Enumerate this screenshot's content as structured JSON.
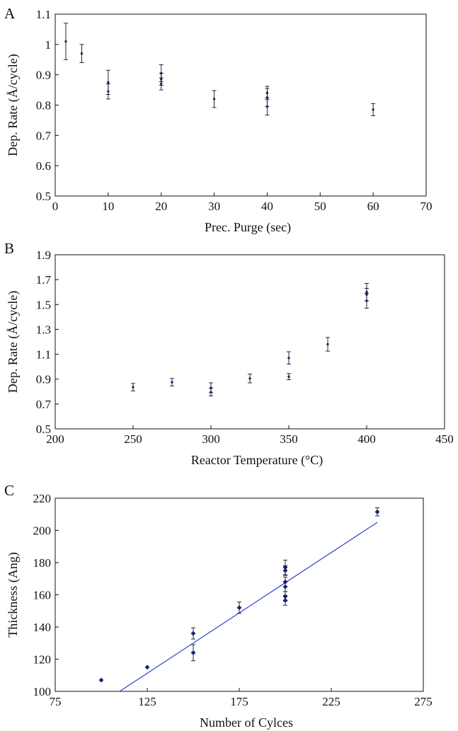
{
  "chart_data": [
    {
      "panel": "A",
      "type": "scatter",
      "xlabel": "Prec. Purge (sec)",
      "ylabel": "Dep. Rate (Å/cycle)",
      "xlim": [
        0,
        70
      ],
      "ylim": [
        0.5,
        1.1
      ],
      "xticks": [
        0,
        10,
        20,
        30,
        40,
        50,
        60,
        70
      ],
      "yticks": [
        0.5,
        0.6,
        0.7,
        0.8,
        0.9,
        1.0,
        1.1
      ],
      "xtick_labels": [
        "0",
        "10",
        "20",
        "30",
        "40",
        "50",
        "60",
        "70"
      ],
      "ytick_labels": [
        "0.5",
        "0.6",
        "0.7",
        "0.8",
        "0.9",
        "1",
        "1.1"
      ],
      "grid": false,
      "points": [
        {
          "x": 2,
          "y": 1.01,
          "err": 0.06
        },
        {
          "x": 5,
          "y": 0.97,
          "err": 0.03
        },
        {
          "x": 10,
          "y": 0.875,
          "err": 0.04
        },
        {
          "x": 10,
          "y": 0.845,
          "err": 0.025
        },
        {
          "x": 20,
          "y": 0.905,
          "err": 0.028
        },
        {
          "x": 20,
          "y": 0.885,
          "err": 0.02
        },
        {
          "x": 20,
          "y": 0.87,
          "err": 0.02
        },
        {
          "x": 30,
          "y": 0.82,
          "err": 0.028
        },
        {
          "x": 40,
          "y": 0.84,
          "err": 0.022
        },
        {
          "x": 40,
          "y": 0.825,
          "err": 0.03
        },
        {
          "x": 40,
          "y": 0.795,
          "err": 0.028
        },
        {
          "x": 60,
          "y": 0.785,
          "err": 0.02
        }
      ]
    },
    {
      "panel": "B",
      "type": "scatter",
      "xlabel": "Reactor  Temperature (°C)",
      "ylabel": "Dep. Rate (Å/cycle)",
      "xlim": [
        200,
        450
      ],
      "ylim": [
        0.5,
        1.9
      ],
      "xticks": [
        200,
        250,
        300,
        350,
        400,
        450
      ],
      "yticks": [
        0.5,
        0.7,
        0.9,
        1.1,
        1.3,
        1.5,
        1.7,
        1.9
      ],
      "xtick_labels": [
        "200",
        "250",
        "300",
        "350",
        "400",
        "450"
      ],
      "ytick_labels": [
        "0.5",
        "0.7",
        "0.9",
        "1.1",
        "1.3",
        "1.5",
        "1.7",
        "1.9"
      ],
      "grid": false,
      "points": [
        {
          "x": 250,
          "y": 0.835,
          "err": 0.03
        },
        {
          "x": 275,
          "y": 0.875,
          "err": 0.03
        },
        {
          "x": 300,
          "y": 0.83,
          "err": 0.04
        },
        {
          "x": 300,
          "y": 0.795,
          "err": 0.03
        },
        {
          "x": 325,
          "y": 0.905,
          "err": 0.035
        },
        {
          "x": 350,
          "y": 1.07,
          "err": 0.05
        },
        {
          "x": 350,
          "y": 0.92,
          "err": 0.025
        },
        {
          "x": 375,
          "y": 1.18,
          "err": 0.055
        },
        {
          "x": 400,
          "y": 1.6,
          "err": 0.07
        },
        {
          "x": 400,
          "y": 1.58,
          "err": 0.05
        },
        {
          "x": 400,
          "y": 1.53,
          "err": 0.06
        }
      ]
    },
    {
      "panel": "C",
      "type": "scatter",
      "xlabel": "Number of Cylces",
      "ylabel": "Thickness (Ang)",
      "xlim": [
        75,
        275
      ],
      "ylim": [
        100,
        220
      ],
      "xticks": [
        75,
        125,
        175,
        225,
        275
      ],
      "yticks": [
        100,
        120,
        140,
        160,
        180,
        200,
        220
      ],
      "xtick_labels": [
        "75",
        "125",
        "175",
        "225",
        "275"
      ],
      "ytick_labels": [
        "100",
        "120",
        "140",
        "160",
        "180",
        "200",
        "220"
      ],
      "grid": false,
      "points": [
        {
          "x": 100,
          "y": 107,
          "err": 0
        },
        {
          "x": 125,
          "y": 115,
          "err": 0
        },
        {
          "x": 150,
          "y": 136,
          "err": 3.5
        },
        {
          "x": 150,
          "y": 124,
          "err": 5
        },
        {
          "x": 175,
          "y": 152,
          "err": 3.5
        },
        {
          "x": 200,
          "y": 177,
          "err": 4.5
        },
        {
          "x": 200,
          "y": 175,
          "err": 3
        },
        {
          "x": 200,
          "y": 168,
          "err": 3
        },
        {
          "x": 200,
          "y": 165,
          "err": 3
        },
        {
          "x": 200,
          "y": 159,
          "err": 3
        },
        {
          "x": 200,
          "y": 156.5,
          "err": 3
        },
        {
          "x": 250,
          "y": 211.5,
          "err": 2.5
        }
      ],
      "fit_line": {
        "x": [
          110,
          250
        ],
        "y": [
          100,
          205
        ],
        "color": "#2a3fd6"
      }
    }
  ],
  "colors": {
    "marker": "#1a237e",
    "errorbar": "#111111",
    "fit": "#2a3fd6",
    "axis": "#111111"
  }
}
